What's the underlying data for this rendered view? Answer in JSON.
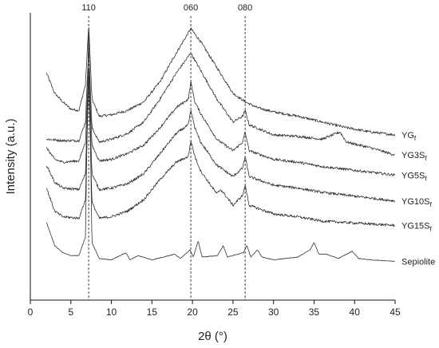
{
  "chart_data": {
    "type": "line",
    "title": "",
    "xlabel": "2θ (°)",
    "ylabel": "Intensity (a.u.)",
    "xlim": [
      0,
      45
    ],
    "x_ticks": [
      0,
      5,
      10,
      15,
      20,
      25,
      30,
      35,
      40,
      45
    ],
    "y_ticks_visible": false,
    "grid": false,
    "legend": "none",
    "line_color": "#333333",
    "reference_lines": [
      {
        "label": "110",
        "x": 7.2
      },
      {
        "label": "060",
        "x": 19.8
      },
      {
        "label": "080",
        "x": 26.5
      }
    ],
    "series": [
      {
        "label_main": "YG",
        "label_sub": "f",
        "baseline": 0.66,
        "points": [
          [
            2,
            0.79
          ],
          [
            3,
            0.72
          ],
          [
            4,
            0.69
          ],
          [
            5,
            0.665
          ],
          [
            6,
            0.66
          ],
          [
            6.8,
            0.75
          ],
          [
            7.2,
            0.96
          ],
          [
            7.6,
            0.7
          ],
          [
            8.5,
            0.64
          ],
          [
            10,
            0.645
          ],
          [
            12,
            0.66
          ],
          [
            14,
            0.69
          ],
          [
            16,
            0.76
          ],
          [
            18,
            0.86
          ],
          [
            19.8,
            0.945
          ],
          [
            21,
            0.9
          ],
          [
            23,
            0.81
          ],
          [
            25,
            0.72
          ],
          [
            26.5,
            0.69
          ],
          [
            28,
            0.67
          ],
          [
            30,
            0.655
          ],
          [
            33,
            0.64
          ],
          [
            36,
            0.62
          ],
          [
            39,
            0.6
          ],
          [
            42,
            0.585
          ],
          [
            45,
            0.575
          ]
        ]
      },
      {
        "label_main": "YG3S",
        "label_sub": "f",
        "baseline": 0.56,
        "points": [
          [
            2,
            0.56
          ],
          [
            4,
            0.555
          ],
          [
            6,
            0.555
          ],
          [
            6.8,
            0.62
          ],
          [
            7.2,
            0.88
          ],
          [
            7.6,
            0.6
          ],
          [
            8.5,
            0.55
          ],
          [
            10,
            0.56
          ],
          [
            12,
            0.58
          ],
          [
            14,
            0.62
          ],
          [
            16,
            0.7
          ],
          [
            18,
            0.79
          ],
          [
            19.8,
            0.86
          ],
          [
            21,
            0.8
          ],
          [
            23,
            0.7
          ],
          [
            25,
            0.62
          ],
          [
            26.2,
            0.64
          ],
          [
            26.5,
            0.66
          ],
          [
            27,
            0.61
          ],
          [
            30,
            0.575
          ],
          [
            33,
            0.57
          ],
          [
            36,
            0.56
          ],
          [
            38.2,
            0.585
          ],
          [
            39,
            0.55
          ],
          [
            42,
            0.53
          ],
          [
            45,
            0.505
          ]
        ]
      },
      {
        "label_main": "YG5S",
        "label_sub": "f",
        "baseline": 0.49,
        "points": [
          [
            2,
            0.53
          ],
          [
            3,
            0.49
          ],
          [
            4,
            0.48
          ],
          [
            6,
            0.485
          ],
          [
            6.8,
            0.55
          ],
          [
            7.2,
            0.82
          ],
          [
            7.6,
            0.54
          ],
          [
            8.5,
            0.485
          ],
          [
            10,
            0.49
          ],
          [
            12,
            0.51
          ],
          [
            14,
            0.54
          ],
          [
            16,
            0.6
          ],
          [
            18,
            0.67
          ],
          [
            19.5,
            0.7
          ],
          [
            19.8,
            0.76
          ],
          [
            20.3,
            0.69
          ],
          [
            21,
            0.65
          ],
          [
            23,
            0.56
          ],
          [
            25,
            0.52
          ],
          [
            26.2,
            0.55
          ],
          [
            26.5,
            0.585
          ],
          [
            27,
            0.52
          ],
          [
            30,
            0.49
          ],
          [
            33,
            0.48
          ],
          [
            36,
            0.465
          ],
          [
            39,
            0.455
          ],
          [
            42,
            0.445
          ],
          [
            45,
            0.435
          ]
        ]
      },
      {
        "label_main": "YG10S",
        "label_sub": "f",
        "baseline": 0.39,
        "points": [
          [
            2,
            0.47
          ],
          [
            3,
            0.41
          ],
          [
            4,
            0.39
          ],
          [
            6,
            0.385
          ],
          [
            6.8,
            0.44
          ],
          [
            7.2,
            0.8
          ],
          [
            7.6,
            0.44
          ],
          [
            8.5,
            0.385
          ],
          [
            10,
            0.39
          ],
          [
            12,
            0.405
          ],
          [
            14,
            0.44
          ],
          [
            16,
            0.51
          ],
          [
            18,
            0.58
          ],
          [
            19.5,
            0.61
          ],
          [
            19.8,
            0.66
          ],
          [
            20.3,
            0.6
          ],
          [
            21,
            0.55
          ],
          [
            23,
            0.47
          ],
          [
            25,
            0.43
          ],
          [
            26.2,
            0.46
          ],
          [
            26.5,
            0.5
          ],
          [
            27,
            0.43
          ],
          [
            30,
            0.4
          ],
          [
            33,
            0.39
          ],
          [
            36,
            0.375
          ],
          [
            39,
            0.365
          ],
          [
            42,
            0.355
          ],
          [
            45,
            0.345
          ]
        ]
      },
      {
        "label_main": "YG15S",
        "label_sub": "f",
        "baseline": 0.29,
        "points": [
          [
            2,
            0.39
          ],
          [
            3,
            0.31
          ],
          [
            4,
            0.29
          ],
          [
            6,
            0.285
          ],
          [
            6.8,
            0.35
          ],
          [
            7.2,
            0.78
          ],
          [
            7.6,
            0.34
          ],
          [
            8.5,
            0.285
          ],
          [
            10,
            0.29
          ],
          [
            12,
            0.31
          ],
          [
            14,
            0.35
          ],
          [
            16,
            0.42
          ],
          [
            18,
            0.48
          ],
          [
            19.5,
            0.5
          ],
          [
            19.8,
            0.555
          ],
          [
            20.3,
            0.5
          ],
          [
            21,
            0.45
          ],
          [
            23,
            0.37
          ],
          [
            23.5,
            0.385
          ],
          [
            25,
            0.33
          ],
          [
            26.2,
            0.365
          ],
          [
            26.5,
            0.4
          ],
          [
            27,
            0.33
          ],
          [
            30,
            0.3
          ],
          [
            33,
            0.29
          ],
          [
            36,
            0.275
          ],
          [
            39,
            0.27
          ],
          [
            42,
            0.265
          ],
          [
            45,
            0.26
          ]
        ]
      },
      {
        "label_main": "Sepiolite",
        "label_sub": "",
        "baseline": 0.15,
        "points": [
          [
            2,
            0.27
          ],
          [
            3,
            0.19
          ],
          [
            4,
            0.165
          ],
          [
            5,
            0.155
          ],
          [
            6,
            0.155
          ],
          [
            6.8,
            0.22
          ],
          [
            7.2,
            0.97
          ],
          [
            7.6,
            0.2
          ],
          [
            8.5,
            0.145
          ],
          [
            10,
            0.14
          ],
          [
            11.8,
            0.165
          ],
          [
            12.3,
            0.14
          ],
          [
            13.3,
            0.155
          ],
          [
            15,
            0.14
          ],
          [
            17.8,
            0.16
          ],
          [
            18.5,
            0.145
          ],
          [
            19.7,
            0.175
          ],
          [
            20.1,
            0.15
          ],
          [
            20.7,
            0.205
          ],
          [
            21.2,
            0.15
          ],
          [
            23.1,
            0.155
          ],
          [
            23.8,
            0.19
          ],
          [
            24.3,
            0.15
          ],
          [
            26.3,
            0.165
          ],
          [
            26.7,
            0.19
          ],
          [
            27.2,
            0.15
          ],
          [
            28,
            0.175
          ],
          [
            28.6,
            0.15
          ],
          [
            30,
            0.14
          ],
          [
            33,
            0.15
          ],
          [
            34.5,
            0.175
          ],
          [
            35,
            0.2
          ],
          [
            35.6,
            0.16
          ],
          [
            36.5,
            0.16
          ],
          [
            38,
            0.145
          ],
          [
            39.7,
            0.17
          ],
          [
            40.5,
            0.145
          ],
          [
            42,
            0.14
          ],
          [
            45,
            0.135
          ]
        ]
      }
    ]
  }
}
